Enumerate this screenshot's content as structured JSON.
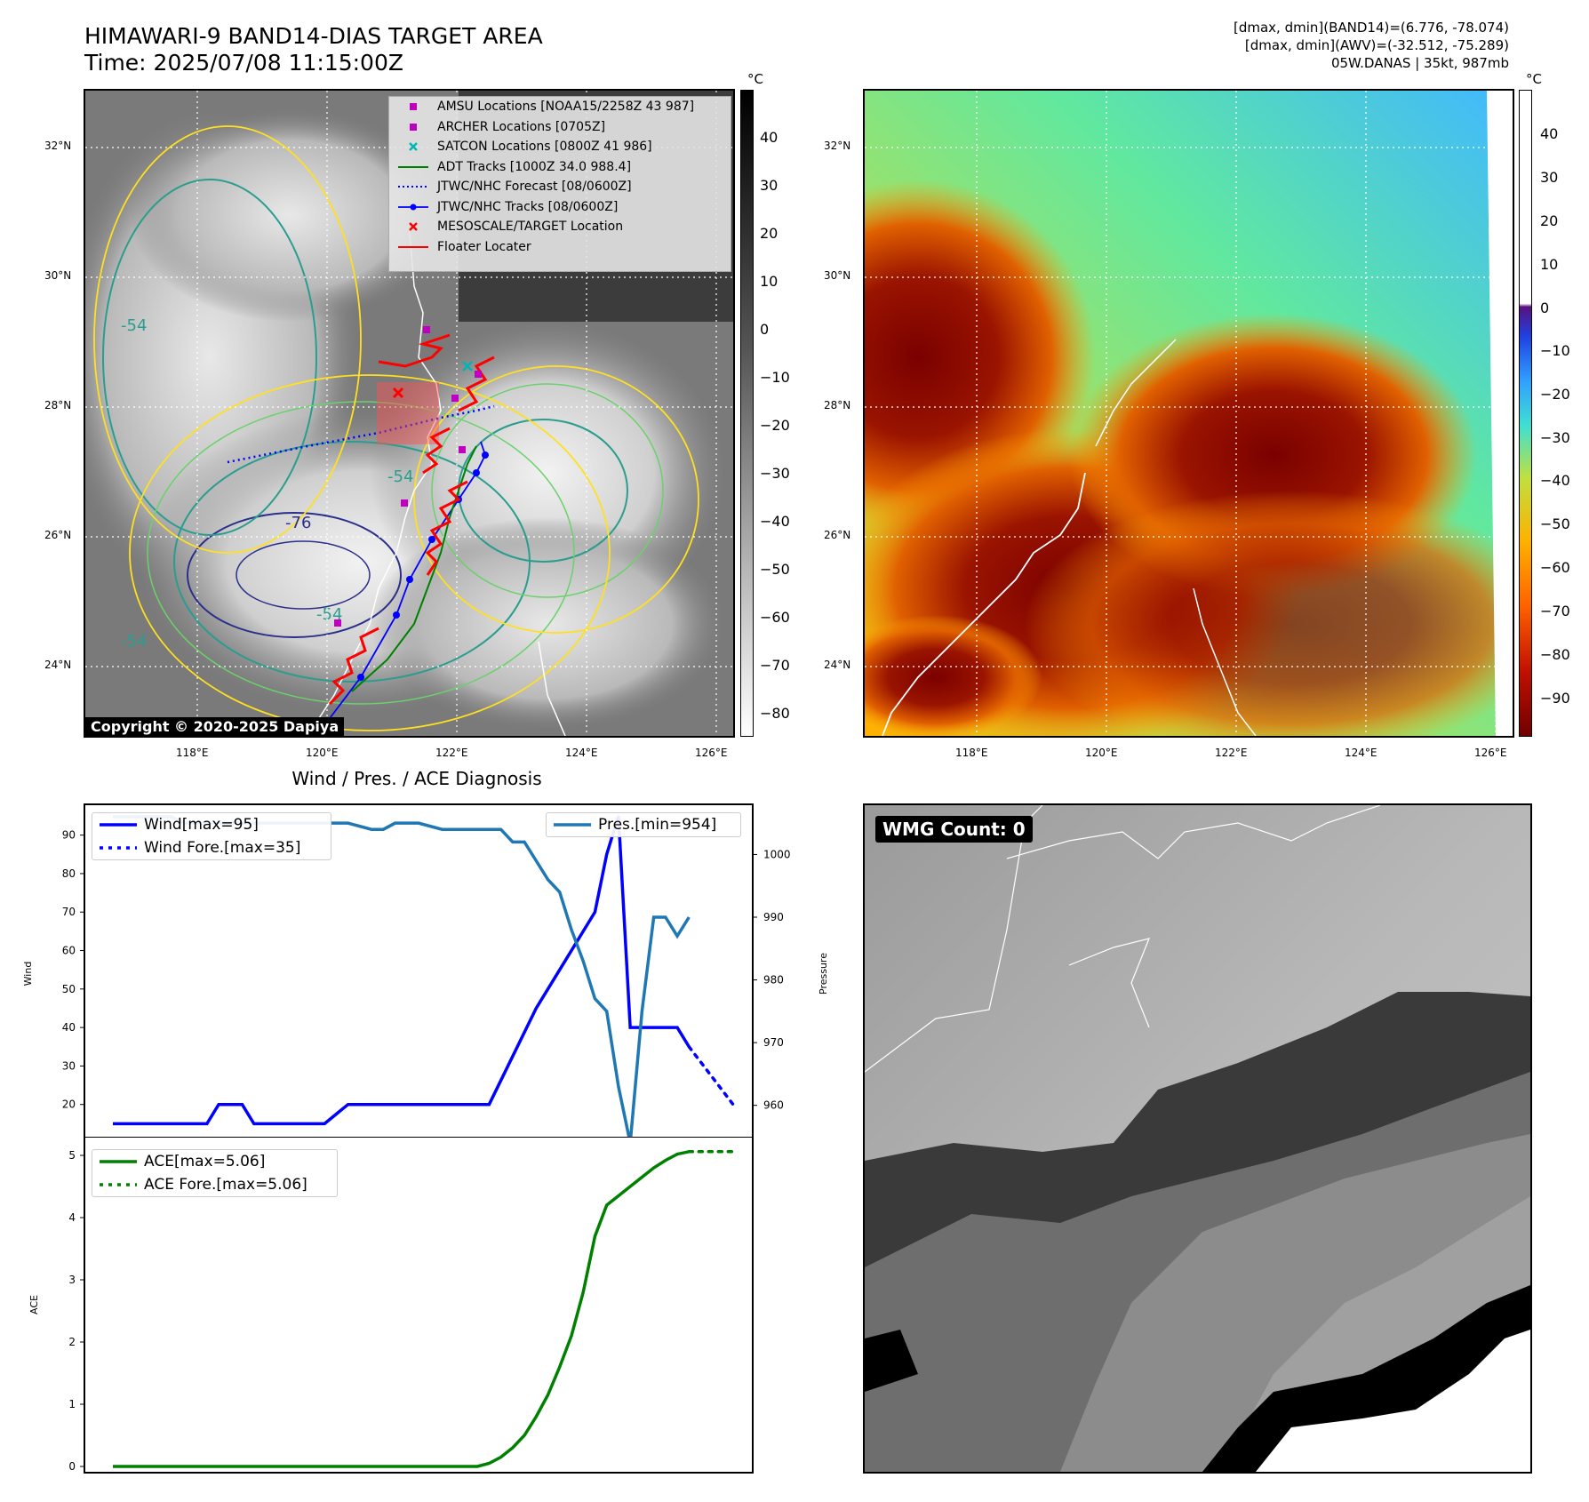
{
  "title": {
    "line1": "HIMAWARI-9 BAND14-DIAS TARGET AREA",
    "line2": "Time: 2025/07/08 11:15:00Z",
    "right1": "[dmax, dmin](BAND14)=(6.776, -78.074)",
    "right2": "[dmax, dmin](AWV)=(-32.512, -75.289)",
    "right3": "05W.DANAS | 35kt, 987mb"
  },
  "map": {
    "lat_labels": [
      "32°N",
      "30°N",
      "28°N",
      "26°N",
      "24°N"
    ],
    "lon_labels": [
      "118°E",
      "120°E",
      "122°E",
      "124°E",
      "126°E"
    ],
    "copyright": "Copyright © 2020-2025 Dapiya",
    "contour_labels": [
      "-76",
      "-54",
      "-54",
      "-54",
      "-54"
    ],
    "legend": [
      {
        "label": "AMSU Locations [NOAA15/2258Z 43 987]",
        "marker": "square",
        "color": "#c000c0"
      },
      {
        "label": "ARCHER Locations [0705Z]",
        "marker": "square",
        "color": "#c000c0"
      },
      {
        "label": "SATCON Locations [0800Z 41 986]",
        "marker": "x",
        "color": "#00b5b5"
      },
      {
        "label": "ADT Tracks [1000Z 34.0 988.4]",
        "marker": "line",
        "color": "#008000"
      },
      {
        "label": "JTWC/NHC Forecast [08/0600Z]",
        "marker": "dotted",
        "color": "#0000ff"
      },
      {
        "label": "JTWC/NHC Tracks [08/0600Z]",
        "marker": "line-dot",
        "color": "#0000ff"
      },
      {
        "label": "MESOSCALE/TARGET Location",
        "marker": "x",
        "color": "#ff0000"
      },
      {
        "label": "Floater Locater",
        "marker": "line",
        "color": "#ff0000"
      }
    ]
  },
  "colorbar_left": {
    "unit": "°C",
    "ticks": [
      "40",
      "30",
      "20",
      "10",
      "0",
      "−10",
      "−20",
      "−30",
      "−40",
      "−50",
      "−60",
      "−70",
      "−80"
    ]
  },
  "colorbar_right": {
    "unit": "°C",
    "ticks": [
      "40",
      "30",
      "20",
      "10",
      "0",
      "−10",
      "−20",
      "−30",
      "−40",
      "−50",
      "−60",
      "−70",
      "−80",
      "−90"
    ]
  },
  "chart_data": [
    {
      "type": "line",
      "title": "Wind / Pres. / ACE Diagnosis",
      "ylabel": "Wind",
      "ylabel_right": "Pressure",
      "ylim": [
        10,
        98
      ],
      "ylim_right": [
        954,
        1008
      ],
      "yticks": [
        20,
        30,
        40,
        50,
        60,
        70,
        80,
        90
      ],
      "yticks_right": [
        960,
        970,
        980,
        990,
        1000
      ],
      "x_index_range": [
        0,
        52
      ],
      "series": [
        {
          "name": "Wind[max=95]",
          "color": "#0000ff",
          "style": "solid",
          "x": [
            0,
            2,
            4,
            8,
            9,
            11,
            12,
            14,
            16,
            18,
            20,
            26,
            32,
            36,
            38,
            40,
            41,
            42,
            43,
            44,
            46,
            48,
            49
          ],
          "values": [
            15,
            15,
            15,
            15,
            20,
            20,
            15,
            15,
            15,
            15,
            20,
            20,
            20,
            45,
            55,
            65,
            70,
            85,
            95,
            40,
            40,
            40,
            35
          ]
        },
        {
          "name": "Wind Fore.[max=35]",
          "color": "#0000ff",
          "style": "dotted",
          "x": [
            49,
            50,
            51,
            52,
            53
          ],
          "values": [
            35,
            31,
            27,
            23,
            19
          ]
        },
        {
          "name": "Pres.[min=954]",
          "color": "#1f77b4",
          "style": "solid",
          "axis": "right",
          "x": [
            0,
            4,
            5,
            6,
            8,
            10,
            12,
            14,
            16,
            17,
            18,
            19,
            20,
            22,
            23,
            24,
            25,
            26,
            28,
            29,
            30,
            31,
            32,
            33,
            34,
            35,
            36,
            37,
            38,
            39,
            40,
            41,
            42,
            43,
            44,
            45,
            46,
            47,
            48,
            49
          ],
          "values": [
            1006,
            1006,
            1006,
            1005,
            1005,
            1005,
            1005,
            1005,
            1005,
            1005,
            1005,
            1005,
            1005,
            1004,
            1004,
            1005,
            1005,
            1005,
            1004,
            1004,
            1004,
            1004,
            1004,
            1004,
            1002,
            1002,
            999,
            996,
            994,
            988,
            983,
            977,
            975,
            963,
            954,
            975,
            990,
            990,
            987,
            990
          ]
        }
      ]
    },
    {
      "type": "line",
      "ylabel": "ACE",
      "ylim": [
        -0.1,
        5.3
      ],
      "yticks": [
        0,
        1,
        2,
        3,
        4,
        5
      ],
      "series": [
        {
          "name": "ACE[max=5.06]",
          "color": "#008000",
          "style": "solid",
          "x": [
            0,
            5,
            10,
            15,
            20,
            25,
            30,
            31,
            32,
            33,
            34,
            35,
            36,
            37,
            38,
            39,
            40,
            41,
            42,
            43,
            44,
            45,
            46,
            47,
            48,
            49
          ],
          "values": [
            0,
            0,
            0,
            0,
            0,
            0,
            0,
            0,
            0.05,
            0.15,
            0.3,
            0.5,
            0.8,
            1.15,
            1.6,
            2.1,
            2.8,
            3.7,
            4.2,
            4.35,
            4.5,
            4.65,
            4.8,
            4.92,
            5.02,
            5.06
          ]
        },
        {
          "name": "ACE Fore.[max=5.06]",
          "color": "#008000",
          "style": "dotted",
          "x": [
            49,
            51,
            53
          ],
          "values": [
            5.06,
            5.06,
            5.06
          ]
        }
      ]
    }
  ],
  "wmg": {
    "label": "WMG Count: 0"
  }
}
